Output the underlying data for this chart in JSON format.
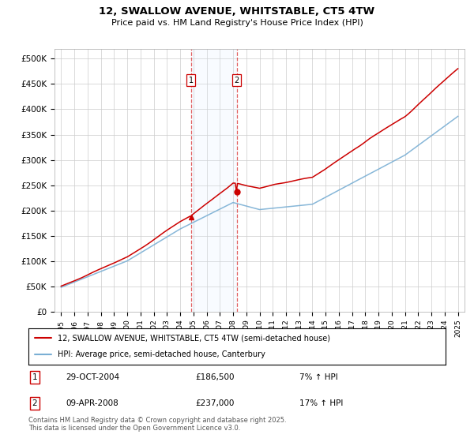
{
  "title": "12, SWALLOW AVENUE, WHITSTABLE, CT5 4TW",
  "subtitle": "Price paid vs. HM Land Registry's House Price Index (HPI)",
  "legend_line1": "12, SWALLOW AVENUE, WHITSTABLE, CT5 4TW (semi-detached house)",
  "legend_line2": "HPI: Average price, semi-detached house, Canterbury",
  "footnote": "Contains HM Land Registry data © Crown copyright and database right 2025.\nThis data is licensed under the Open Government Licence v3.0.",
  "annotation1_label": "1",
  "annotation1_date": "29-OCT-2004",
  "annotation1_price": "£186,500",
  "annotation1_hpi": "7% ↑ HPI",
  "annotation2_label": "2",
  "annotation2_date": "09-APR-2008",
  "annotation2_price": "£237,000",
  "annotation2_hpi": "17% ↑ HPI",
  "sale1_x": 2004.83,
  "sale2_x": 2008.27,
  "sale1_y": 186500,
  "sale2_y": 237000,
  "property_color": "#cc0000",
  "hpi_color": "#7aafd4",
  "shading_color": "#ddeeff",
  "background_color": "#ffffff",
  "grid_color": "#cccccc",
  "ylim": [
    0,
    520000
  ],
  "yticks": [
    0,
    50000,
    100000,
    150000,
    200000,
    250000,
    300000,
    350000,
    400000,
    450000,
    500000
  ],
  "ytick_labels": [
    "£0",
    "£50K",
    "£100K",
    "£150K",
    "£200K",
    "£250K",
    "£300K",
    "£350K",
    "£400K",
    "£450K",
    "£500K"
  ],
  "xlim": [
    1994.5,
    2025.5
  ]
}
